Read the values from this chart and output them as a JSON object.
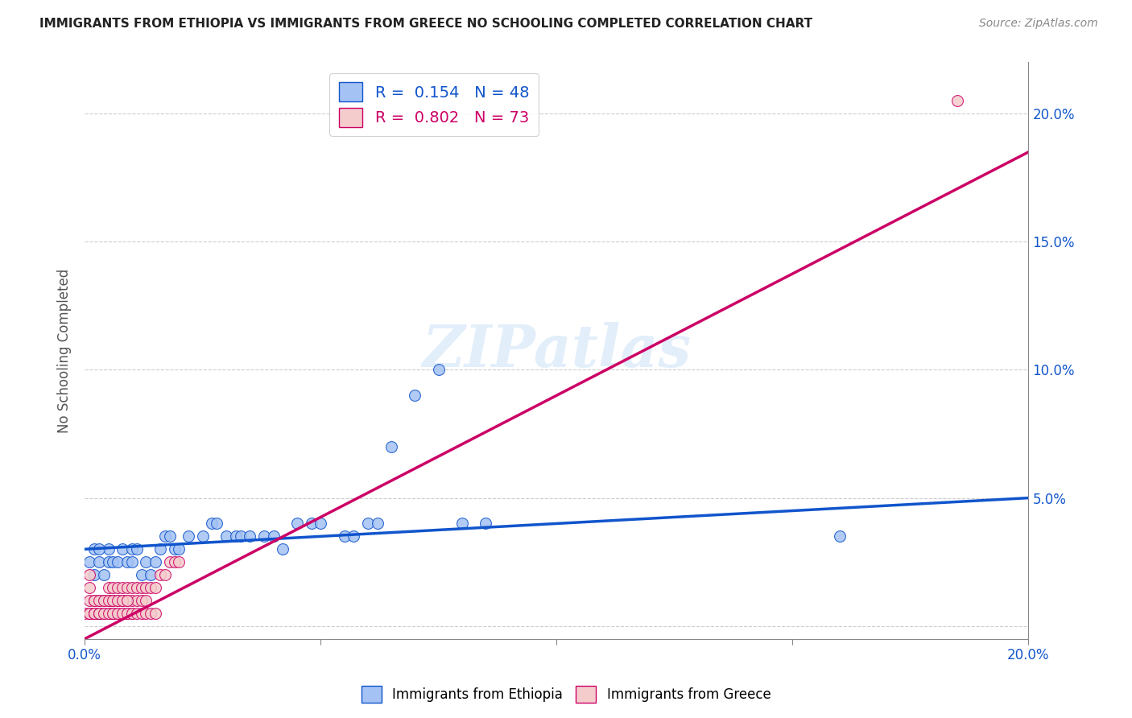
{
  "title": "IMMIGRANTS FROM ETHIOPIA VS IMMIGRANTS FROM GREECE NO SCHOOLING COMPLETED CORRELATION CHART",
  "source": "Source: ZipAtlas.com",
  "ylabel": "No Schooling Completed",
  "xlim": [
    0.0,
    0.2
  ],
  "ylim": [
    -0.005,
    0.22
  ],
  "xticks": [
    0.0,
    0.05,
    0.1,
    0.15,
    0.2
  ],
  "yticks": [
    0.0,
    0.05,
    0.1,
    0.15,
    0.2
  ],
  "xtick_labels": [
    "0.0%",
    "",
    "",
    "",
    "20.0%"
  ],
  "ytick_labels_right": [
    "",
    "5.0%",
    "10.0%",
    "15.0%",
    "20.0%"
  ],
  "legend_ethiopia": "R =  0.154   N = 48",
  "legend_greece": "R =  0.802   N = 73",
  "color_ethiopia": "#a4c2f4",
  "color_greece": "#f4cccc",
  "color_line_ethiopia": "#1155cc",
  "color_line_greece": "#cc0066",
  "watermark": "ZIPatlas",
  "ethiopia_x": [
    0.001,
    0.002,
    0.002,
    0.003,
    0.004,
    0.005,
    0.005,
    0.006,
    0.007,
    0.008,
    0.009,
    0.01,
    0.01,
    0.011,
    0.012,
    0.013,
    0.014,
    0.015,
    0.016,
    0.017,
    0.018,
    0.019,
    0.02,
    0.022,
    0.025,
    0.027,
    0.028,
    0.03,
    0.032,
    0.033,
    0.035,
    0.038,
    0.04,
    0.042,
    0.045,
    0.048,
    0.05,
    0.055,
    0.057,
    0.06,
    0.062,
    0.065,
    0.07,
    0.075,
    0.08,
    0.085,
    0.16,
    0.003
  ],
  "ethiopia_y": [
    0.025,
    0.02,
    0.03,
    0.025,
    0.02,
    0.025,
    0.03,
    0.025,
    0.025,
    0.03,
    0.025,
    0.025,
    0.03,
    0.03,
    0.02,
    0.025,
    0.02,
    0.025,
    0.03,
    0.035,
    0.035,
    0.03,
    0.03,
    0.035,
    0.035,
    0.04,
    0.04,
    0.035,
    0.035,
    0.035,
    0.035,
    0.035,
    0.035,
    0.03,
    0.04,
    0.04,
    0.04,
    0.035,
    0.035,
    0.04,
    0.04,
    0.07,
    0.09,
    0.1,
    0.04,
    0.04,
    0.035,
    0.03
  ],
  "greece_x": [
    0.0,
    0.001,
    0.001,
    0.001,
    0.001,
    0.002,
    0.002,
    0.002,
    0.003,
    0.003,
    0.003,
    0.003,
    0.004,
    0.004,
    0.005,
    0.005,
    0.005,
    0.006,
    0.006,
    0.006,
    0.006,
    0.007,
    0.007,
    0.007,
    0.008,
    0.008,
    0.008,
    0.009,
    0.009,
    0.009,
    0.01,
    0.01,
    0.01,
    0.011,
    0.011,
    0.012,
    0.012,
    0.013,
    0.013,
    0.014,
    0.015,
    0.016,
    0.017,
    0.018,
    0.019,
    0.02,
    0.001,
    0.001,
    0.002,
    0.002,
    0.002,
    0.003,
    0.003,
    0.003,
    0.004,
    0.004,
    0.005,
    0.005,
    0.006,
    0.006,
    0.007,
    0.007,
    0.008,
    0.008,
    0.009,
    0.009,
    0.01,
    0.011,
    0.012,
    0.013,
    0.014,
    0.015,
    0.185
  ],
  "greece_y": [
    0.005,
    0.005,
    0.01,
    0.015,
    0.005,
    0.005,
    0.01,
    0.005,
    0.005,
    0.01,
    0.005,
    0.005,
    0.005,
    0.01,
    0.005,
    0.01,
    0.015,
    0.005,
    0.01,
    0.015,
    0.005,
    0.005,
    0.01,
    0.015,
    0.005,
    0.01,
    0.015,
    0.005,
    0.01,
    0.015,
    0.01,
    0.015,
    0.005,
    0.01,
    0.015,
    0.01,
    0.015,
    0.01,
    0.015,
    0.015,
    0.015,
    0.02,
    0.02,
    0.025,
    0.025,
    0.025,
    0.02,
    0.005,
    0.01,
    0.005,
    0.005,
    0.01,
    0.005,
    0.005,
    0.01,
    0.005,
    0.01,
    0.005,
    0.01,
    0.005,
    0.01,
    0.005,
    0.01,
    0.005,
    0.01,
    0.005,
    0.005,
    0.005,
    0.005,
    0.005,
    0.005,
    0.005,
    0.205
  ],
  "eth_line_x": [
    0.0,
    0.2
  ],
  "eth_line_y": [
    0.03,
    0.05
  ],
  "grc_line_x": [
    0.0,
    0.2
  ],
  "grc_line_y": [
    -0.005,
    0.185
  ]
}
